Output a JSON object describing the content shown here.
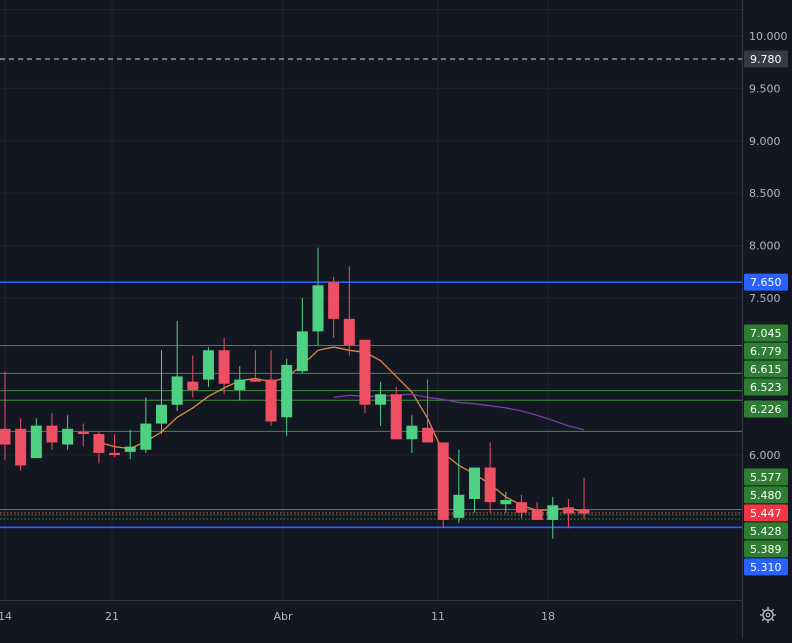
{
  "colors": {
    "background": "#131722",
    "grid": "#1f2330",
    "axis_border": "#363a45",
    "axis_text": "#b2b5be",
    "up": "#26a69a",
    "up_fill": "#4fd183",
    "down": "#ef5350",
    "down_fill": "#ef4f63",
    "sma_short": "#e08a3a",
    "sma_long": "#7b3fa3",
    "level_line_green": "#3d8f3d",
    "level_line_blue": "#2962ff",
    "label_green_bg": "#2e7d32",
    "label_blue_bg": "#2962ff",
    "label_red_bg": "#f23645",
    "label_gray_bg": "#363a45",
    "label_text": "#ffffff"
  },
  "chart_data": {
    "type": "candlestick",
    "x_ticks": [
      "14",
      "21",
      "Abr",
      "11",
      "18"
    ],
    "y_ticks": [
      "10.000",
      "9.500",
      "9.000",
      "8.500",
      "8.000",
      "7.500",
      "6.000"
    ],
    "y_range": [
      4.3,
      10.5
    ],
    "candles": [
      {
        "o": 6.25,
        "h": 6.8,
        "l": 5.95,
        "c": 6.1
      },
      {
        "o": 6.25,
        "h": 6.35,
        "l": 5.85,
        "c": 5.9
      },
      {
        "o": 5.97,
        "h": 6.35,
        "l": 5.97,
        "c": 6.28
      },
      {
        "o": 6.28,
        "h": 6.4,
        "l": 6.05,
        "c": 6.12
      },
      {
        "o": 6.1,
        "h": 6.38,
        "l": 6.05,
        "c": 6.25
      },
      {
        "o": 6.22,
        "h": 6.3,
        "l": 6.08,
        "c": 6.2
      },
      {
        "o": 6.2,
        "h": 6.22,
        "l": 5.92,
        "c": 6.02
      },
      {
        "o": 6.02,
        "h": 6.2,
        "l": 5.98,
        "c": 6.0
      },
      {
        "o": 6.03,
        "h": 6.24,
        "l": 5.96,
        "c": 6.08
      },
      {
        "o": 6.05,
        "h": 6.55,
        "l": 6.02,
        "c": 6.3
      },
      {
        "o": 6.3,
        "h": 7.0,
        "l": 6.2,
        "c": 6.48
      },
      {
        "o": 6.48,
        "h": 7.28,
        "l": 6.42,
        "c": 6.75
      },
      {
        "o": 6.7,
        "h": 6.95,
        "l": 6.55,
        "c": 6.62
      },
      {
        "o": 6.72,
        "h": 7.03,
        "l": 6.65,
        "c": 7.0
      },
      {
        "o": 7.0,
        "h": 7.12,
        "l": 6.58,
        "c": 6.68
      },
      {
        "o": 6.62,
        "h": 6.85,
        "l": 6.52,
        "c": 6.72
      },
      {
        "o": 6.72,
        "h": 7.0,
        "l": 6.7,
        "c": 6.7
      },
      {
        "o": 6.72,
        "h": 7.0,
        "l": 6.28,
        "c": 6.32
      },
      {
        "o": 6.36,
        "h": 6.92,
        "l": 6.18,
        "c": 6.86
      },
      {
        "o": 6.8,
        "h": 7.5,
        "l": 6.78,
        "c": 7.18
      },
      {
        "o": 7.18,
        "h": 7.98,
        "l": 7.05,
        "c": 7.62
      },
      {
        "o": 7.65,
        "h": 7.7,
        "l": 7.12,
        "c": 7.3
      },
      {
        "o": 7.3,
        "h": 7.8,
        "l": 6.95,
        "c": 7.05
      },
      {
        "o": 7.1,
        "h": 7.1,
        "l": 6.4,
        "c": 6.48
      },
      {
        "o": 6.48,
        "h": 6.7,
        "l": 6.28,
        "c": 6.58
      },
      {
        "o": 6.58,
        "h": 6.65,
        "l": 6.15,
        "c": 6.15
      },
      {
        "o": 6.15,
        "h": 6.38,
        "l": 6.02,
        "c": 6.28
      },
      {
        "o": 6.26,
        "h": 6.72,
        "l": 6.12,
        "c": 6.12
      },
      {
        "o": 6.12,
        "h": 6.12,
        "l": 5.3,
        "c": 5.38
      },
      {
        "o": 5.4,
        "h": 6.05,
        "l": 5.35,
        "c": 5.62
      },
      {
        "o": 5.58,
        "h": 5.88,
        "l": 5.45,
        "c": 5.88
      },
      {
        "o": 5.88,
        "h": 6.12,
        "l": 5.45,
        "c": 5.55
      },
      {
        "o": 5.53,
        "h": 5.65,
        "l": 5.45,
        "c": 5.57
      },
      {
        "o": 5.55,
        "h": 5.62,
        "l": 5.4,
        "c": 5.45
      },
      {
        "o": 5.48,
        "h": 5.55,
        "l": 5.38,
        "c": 5.38
      },
      {
        "o": 5.38,
        "h": 5.6,
        "l": 5.2,
        "c": 5.52
      },
      {
        "o": 5.5,
        "h": 5.58,
        "l": 5.3,
        "c": 5.44
      },
      {
        "o": 5.48,
        "h": 5.78,
        "l": 5.39,
        "c": 5.44
      }
    ],
    "sma_short": [
      [
        6,
        6.12
      ],
      [
        7,
        6.08
      ],
      [
        8,
        6.06
      ],
      [
        9,
        6.13
      ],
      [
        10,
        6.22
      ],
      [
        11,
        6.36
      ],
      [
        12,
        6.45
      ],
      [
        13,
        6.56
      ],
      [
        14,
        6.64
      ],
      [
        15,
        6.71
      ],
      [
        16,
        6.73
      ],
      [
        17,
        6.7
      ],
      [
        18,
        6.74
      ],
      [
        19,
        6.86
      ],
      [
        20,
        7.0
      ],
      [
        21,
        7.03
      ],
      [
        22,
        7.0
      ],
      [
        23,
        6.98
      ],
      [
        24,
        6.9
      ],
      [
        25,
        6.75
      ],
      [
        26,
        6.6
      ],
      [
        27,
        6.35
      ],
      [
        28,
        6.02
      ],
      [
        29,
        5.9
      ],
      [
        30,
        5.82
      ],
      [
        31,
        5.72
      ],
      [
        32,
        5.6
      ],
      [
        33,
        5.52
      ],
      [
        34,
        5.47
      ],
      [
        35,
        5.48
      ],
      [
        36,
        5.49
      ],
      [
        37,
        5.46
      ]
    ],
    "sma_long": [
      [
        21,
        6.55
      ],
      [
        22,
        6.57
      ],
      [
        23,
        6.56
      ],
      [
        24,
        6.56
      ],
      [
        25,
        6.57
      ],
      [
        26,
        6.58
      ],
      [
        27,
        6.55
      ],
      [
        28,
        6.53
      ],
      [
        29,
        6.5
      ],
      [
        30,
        6.49
      ],
      [
        31,
        6.47
      ],
      [
        32,
        6.45
      ],
      [
        33,
        6.42
      ],
      [
        34,
        6.38
      ],
      [
        35,
        6.33
      ],
      [
        36,
        6.28
      ],
      [
        37,
        6.24
      ]
    ],
    "level_lines": [
      {
        "value": 9.78,
        "style": "dashed",
        "color": "white"
      },
      {
        "value": 7.65,
        "style": "solid",
        "color": "blue"
      },
      {
        "value": 7.045,
        "style": "solid",
        "color": "green"
      },
      {
        "value": 6.779,
        "style": "solid",
        "color": "green"
      },
      {
        "value": 6.615,
        "style": "solid",
        "color": "green"
      },
      {
        "value": 6.523,
        "style": "solid",
        "color": "green"
      },
      {
        "value": 6.226,
        "style": "solid",
        "color": "green"
      },
      {
        "value": 5.48,
        "style": "solid",
        "color": "green"
      },
      {
        "value": 5.447,
        "style": "dotted",
        "color": "red"
      },
      {
        "value": 5.428,
        "style": "dotted",
        "color": "green"
      },
      {
        "value": 5.389,
        "style": "dotted",
        "color": "green"
      },
      {
        "value": 5.31,
        "style": "solid",
        "color": "blue"
      }
    ],
    "price_labels": [
      {
        "text": "9.780",
        "value": 9.78,
        "bg": "gray"
      },
      {
        "text": "7.650",
        "value": 7.65,
        "bg": "blue"
      },
      {
        "text": "7.045",
        "value": 7.045,
        "bg": "green"
      },
      {
        "text": "6.779",
        "value": 6.779,
        "bg": "green"
      },
      {
        "text": "6.615",
        "value": 6.615,
        "bg": "green"
      },
      {
        "text": "6.523",
        "value": 6.523,
        "bg": "green"
      },
      {
        "text": "6.226",
        "value": 6.226,
        "bg": "green"
      },
      {
        "text": "5.577",
        "value": 5.577,
        "bg": "green"
      },
      {
        "text": "5.480",
        "value": 5.48,
        "bg": "green"
      },
      {
        "text": "5.447",
        "value": 5.447,
        "bg": "red"
      },
      {
        "text": "5.428",
        "value": 5.428,
        "bg": "green"
      },
      {
        "text": "5.389",
        "value": 5.389,
        "bg": "green"
      },
      {
        "text": "5.310",
        "value": 5.31,
        "bg": "blue"
      }
    ],
    "grid": true
  },
  "settings_icon": "gear-icon"
}
